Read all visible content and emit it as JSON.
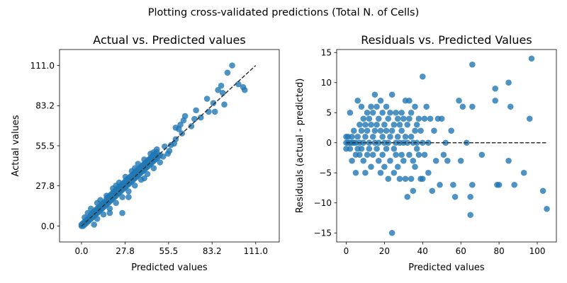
{
  "figure": {
    "suptitle": "Plotting cross-validated predictions (Total N. of Cells)"
  },
  "chart_data": [
    {
      "type": "scatter",
      "title": "Actual vs. Predicted values",
      "xlabel": "Predicted values",
      "ylabel": "Actual values",
      "xlim": [
        -14,
        126
      ],
      "ylim": [
        -11,
        122
      ],
      "xticks": [
        0.0,
        27.8,
        55.5,
        83.2,
        111.0
      ],
      "xtick_labels": [
        "0.0",
        "27.8",
        "55.5",
        "83.2",
        "111.0"
      ],
      "yticks": [
        0.0,
        27.8,
        55.5,
        83.2,
        111.0
      ],
      "ytick_labels": [
        "0.0",
        "27.8",
        "55.5",
        "83.2",
        "111.0"
      ],
      "grid": false,
      "marker_color": "#1f77b4",
      "reference_line": {
        "style": "dashed",
        "color": "#333333",
        "x": [
          0,
          111
        ],
        "y": [
          0,
          111
        ]
      },
      "points": [
        [
          0,
          0
        ],
        [
          0,
          1
        ],
        [
          1,
          0
        ],
        [
          1,
          2
        ],
        [
          2,
          1
        ],
        [
          2,
          3
        ],
        [
          3,
          2
        ],
        [
          3,
          4
        ],
        [
          4,
          3
        ],
        [
          4,
          5
        ],
        [
          5,
          4
        ],
        [
          5,
          6
        ],
        [
          6,
          5
        ],
        [
          6,
          8
        ],
        [
          7,
          6
        ],
        [
          7,
          9
        ],
        [
          8,
          7
        ],
        [
          8,
          10
        ],
        [
          9,
          8
        ],
        [
          9,
          11
        ],
        [
          10,
          9
        ],
        [
          10,
          12
        ],
        [
          11,
          10
        ],
        [
          11,
          13
        ],
        [
          12,
          11
        ],
        [
          12,
          14
        ],
        [
          13,
          12
        ],
        [
          13,
          15
        ],
        [
          14,
          13
        ],
        [
          14,
          16
        ],
        [
          15,
          14
        ],
        [
          15,
          17
        ],
        [
          16,
          15
        ],
        [
          16,
          19
        ],
        [
          17,
          16
        ],
        [
          17,
          20
        ],
        [
          18,
          17
        ],
        [
          18,
          21
        ],
        [
          19,
          18
        ],
        [
          19,
          22
        ],
        [
          20,
          19
        ],
        [
          20,
          23
        ],
        [
          21,
          20
        ],
        [
          21,
          24
        ],
        [
          22,
          21
        ],
        [
          22,
          25
        ],
        [
          23,
          22
        ],
        [
          23,
          26
        ],
        [
          24,
          23
        ],
        [
          24,
          27
        ],
        [
          25,
          24
        ],
        [
          25,
          28
        ],
        [
          26,
          25
        ],
        [
          26,
          29
        ],
        [
          27,
          26
        ],
        [
          27,
          30
        ],
        [
          28,
          27
        ],
        [
          28,
          31
        ],
        [
          29,
          28
        ],
        [
          29,
          32
        ],
        [
          30,
          29
        ],
        [
          30,
          33
        ],
        [
          31,
          30
        ],
        [
          31,
          34
        ],
        [
          32,
          31
        ],
        [
          32,
          35
        ],
        [
          33,
          32
        ],
        [
          33,
          36
        ],
        [
          34,
          33
        ],
        [
          34,
          37
        ],
        [
          35,
          34
        ],
        [
          35,
          38
        ],
        [
          36,
          35
        ],
        [
          36,
          39
        ],
        [
          37,
          36
        ],
        [
          37,
          40
        ],
        [
          38,
          37
        ],
        [
          38,
          41
        ],
        [
          39,
          38
        ],
        [
          39,
          42
        ],
        [
          40,
          39
        ],
        [
          40,
          43
        ],
        [
          41,
          40
        ],
        [
          41,
          44
        ],
        [
          42,
          41
        ],
        [
          42,
          45
        ],
        [
          43,
          42
        ],
        [
          43,
          46
        ],
        [
          44,
          43
        ],
        [
          44,
          47
        ],
        [
          45,
          44
        ],
        [
          45,
          48
        ],
        [
          46,
          45
        ],
        [
          46,
          49
        ],
        [
          47,
          46
        ],
        [
          47,
          50
        ],
        [
          48,
          47
        ],
        [
          48,
          51
        ],
        [
          49,
          48
        ],
        [
          50,
          49
        ],
        [
          2,
          6
        ],
        [
          4,
          9
        ],
        [
          6,
          12
        ],
        [
          8,
          1
        ],
        [
          10,
          5
        ],
        [
          12,
          18
        ],
        [
          14,
          8
        ],
        [
          16,
          21
        ],
        [
          18,
          12
        ],
        [
          20,
          26
        ],
        [
          22,
          16
        ],
        [
          24,
          30
        ],
        [
          26,
          20
        ],
        [
          28,
          34
        ],
        [
          30,
          24
        ],
        [
          32,
          38
        ],
        [
          34,
          28
        ],
        [
          36,
          43
        ],
        [
          38,
          32
        ],
        [
          40,
          46
        ],
        [
          42,
          36
        ],
        [
          44,
          50
        ],
        [
          46,
          40
        ],
        [
          48,
          53
        ],
        [
          50,
          44
        ],
        [
          52,
          48
        ],
        [
          53,
          55
        ],
        [
          55,
          50
        ],
        [
          56,
          52
        ],
        [
          57,
          56
        ],
        [
          59,
          57
        ],
        [
          60,
          60
        ],
        [
          26,
          9
        ],
        [
          30,
          20
        ],
        [
          18,
          9
        ],
        [
          40,
          33
        ],
        [
          34,
          40
        ],
        [
          46,
          51
        ],
        [
          22,
          28
        ],
        [
          10,
          16
        ],
        [
          60,
          68
        ],
        [
          62,
          67
        ],
        [
          63,
          70
        ],
        [
          64,
          64
        ],
        [
          65,
          73
        ],
        [
          66,
          76
        ],
        [
          70,
          69
        ],
        [
          72,
          74
        ],
        [
          73,
          80
        ],
        [
          76,
          75
        ],
        [
          80,
          88
        ],
        [
          81,
          79
        ],
        [
          84,
          85
        ],
        [
          85,
          79
        ],
        [
          87,
          94
        ],
        [
          89,
          97
        ],
        [
          90,
          92
        ],
        [
          91,
          84
        ],
        [
          93,
          106
        ],
        [
          96,
          111
        ],
        [
          100,
          98
        ],
        [
          103,
          96
        ],
        [
          104,
          94
        ]
      ]
    },
    {
      "type": "scatter",
      "title": "Residuals vs. Predicted Values",
      "xlabel": "Predicted values",
      "ylabel": "Residuals (actual - predicted)",
      "xlim": [
        -5,
        110
      ],
      "ylim": [
        -16.5,
        15.5
      ],
      "xticks": [
        0,
        20,
        40,
        60,
        80,
        100
      ],
      "xtick_labels": [
        "0",
        "20",
        "40",
        "60",
        "80",
        "100"
      ],
      "yticks": [
        -15,
        -10,
        -5,
        0,
        5,
        10,
        15
      ],
      "ytick_labels": [
        "−15",
        "−10",
        "−5",
        "0",
        "5",
        "10",
        "15"
      ],
      "grid": false,
      "marker_color": "#1f77b4",
      "reference_line": {
        "style": "dashed",
        "color": "#333333",
        "x": [
          0,
          105
        ],
        "y": [
          0,
          0
        ]
      },
      "points": [
        [
          0,
          0
        ],
        [
          0,
          1
        ],
        [
          0,
          -1
        ],
        [
          1,
          0
        ],
        [
          1,
          1
        ],
        [
          2,
          0
        ],
        [
          2,
          -1
        ],
        [
          2,
          5
        ],
        [
          3,
          0
        ],
        [
          3,
          1
        ],
        [
          3,
          -3
        ],
        [
          4,
          0
        ],
        [
          4,
          2
        ],
        [
          5,
          -2
        ],
        [
          5,
          0
        ],
        [
          5,
          -5
        ],
        [
          6,
          1
        ],
        [
          6,
          7
        ],
        [
          6,
          -1
        ],
        [
          7,
          0
        ],
        [
          7,
          3
        ],
        [
          7,
          -2
        ],
        [
          8,
          2
        ],
        [
          8,
          6
        ],
        [
          8,
          -1
        ],
        [
          9,
          0
        ],
        [
          9,
          4
        ],
        [
          9,
          -3
        ],
        [
          10,
          1
        ],
        [
          10,
          3
        ],
        [
          10,
          -5
        ],
        [
          11,
          2
        ],
        [
          11,
          5
        ],
        [
          11,
          -2
        ],
        [
          12,
          0
        ],
        [
          12,
          4
        ],
        [
          12,
          -1
        ],
        [
          13,
          3
        ],
        [
          13,
          6
        ],
        [
          13,
          -4
        ],
        [
          14,
          1
        ],
        [
          14,
          5
        ],
        [
          14,
          -2
        ],
        [
          15,
          0
        ],
        [
          15,
          2
        ],
        [
          15,
          8
        ],
        [
          16,
          3
        ],
        [
          16,
          -1
        ],
        [
          16,
          6
        ],
        [
          17,
          0
        ],
        [
          17,
          4
        ],
        [
          17,
          -3
        ],
        [
          18,
          2
        ],
        [
          18,
          -5
        ],
        [
          18,
          7
        ],
        [
          19,
          1
        ],
        [
          19,
          -2
        ],
        [
          19,
          5
        ],
        [
          20,
          0
        ],
        [
          20,
          3
        ],
        [
          20,
          -4
        ],
        [
          21,
          2
        ],
        [
          21,
          -1
        ],
        [
          21,
          6
        ],
        [
          22,
          0
        ],
        [
          22,
          4
        ],
        [
          22,
          -6
        ],
        [
          23,
          1
        ],
        [
          23,
          -3
        ],
        [
          23,
          5
        ],
        [
          24,
          8
        ],
        [
          24,
          -15
        ],
        [
          24,
          2
        ],
        [
          25,
          -1
        ],
        [
          25,
          3
        ],
        [
          25,
          -5
        ],
        [
          26,
          0
        ],
        [
          26,
          5
        ],
        [
          26,
          -2
        ],
        [
          27,
          1
        ],
        [
          27,
          -4
        ],
        [
          27,
          4
        ],
        [
          28,
          3
        ],
        [
          28,
          -6
        ],
        [
          28,
          0
        ],
        [
          29,
          2
        ],
        [
          29,
          -2
        ],
        [
          29,
          5
        ],
        [
          30,
          0
        ],
        [
          30,
          4
        ],
        [
          30,
          -3
        ],
        [
          31,
          1
        ],
        [
          31,
          7
        ],
        [
          31,
          -6
        ],
        [
          32,
          0
        ],
        [
          32,
          -9
        ],
        [
          32,
          3
        ],
        [
          33,
          -2
        ],
        [
          33,
          7
        ],
        [
          33,
          4
        ],
        [
          34,
          1
        ],
        [
          34,
          -6
        ],
        [
          34,
          5
        ],
        [
          35,
          -3
        ],
        [
          35,
          0
        ],
        [
          35,
          -8
        ],
        [
          36,
          2
        ],
        [
          36,
          -4
        ],
        [
          36,
          6
        ],
        [
          37,
          0
        ],
        [
          37,
          3
        ],
        [
          37,
          -1
        ],
        [
          38,
          -2
        ],
        [
          38,
          4
        ],
        [
          39,
          -6
        ],
        [
          39,
          2
        ],
        [
          40,
          11
        ],
        [
          40,
          0
        ],
        [
          40,
          -6
        ],
        [
          41,
          4
        ],
        [
          41,
          -2
        ],
        [
          42,
          6
        ],
        [
          43,
          0
        ],
        [
          43,
          -5
        ],
        [
          44,
          4
        ],
        [
          45,
          -8
        ],
        [
          46,
          2
        ],
        [
          47,
          -3
        ],
        [
          48,
          4
        ],
        [
          49,
          -7
        ],
        [
          50,
          4
        ],
        [
          51,
          -2
        ],
        [
          52,
          0
        ],
        [
          53,
          -3
        ],
        [
          55,
          2
        ],
        [
          56,
          -7
        ],
        [
          57,
          -9
        ],
        [
          59,
          7
        ],
        [
          60,
          -3
        ],
        [
          61,
          6
        ],
        [
          63,
          0
        ],
        [
          65,
          -9
        ],
        [
          65,
          -12
        ],
        [
          66,
          -7
        ],
        [
          66,
          13
        ],
        [
          66,
          6
        ],
        [
          71,
          -2
        ],
        [
          78,
          9
        ],
        [
          78,
          7
        ],
        [
          79,
          -7
        ],
        [
          80,
          -7
        ],
        [
          85,
          -3
        ],
        [
          85,
          10
        ],
        [
          86,
          6
        ],
        [
          88,
          -7
        ],
        [
          93,
          -5
        ],
        [
          96,
          4
        ],
        [
          97,
          14
        ],
        [
          103,
          -8
        ],
        [
          105,
          -11
        ]
      ]
    }
  ]
}
